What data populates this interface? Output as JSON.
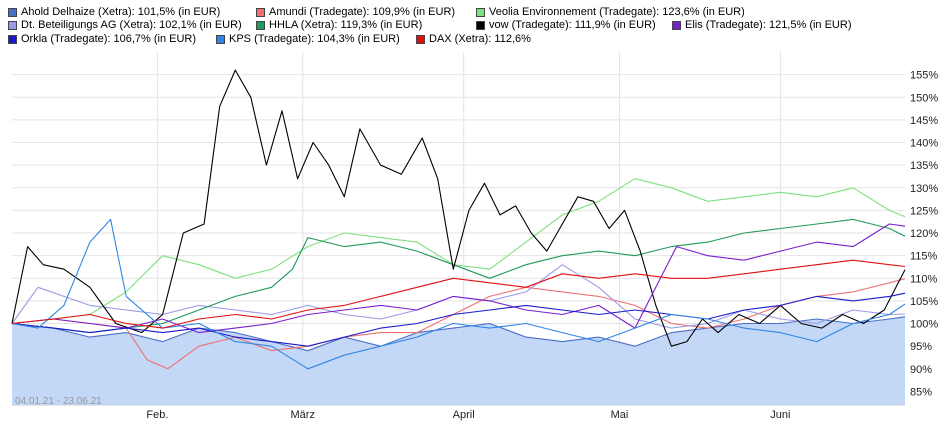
{
  "legend": [
    {
      "label": "Ahold Delhaize (Xetra): 101,5% (in EUR)",
      "color": "#4a6fc6"
    },
    {
      "label": "Amundi (Tradegate): 109,9% (in EUR)",
      "color": "#f07070"
    },
    {
      "label": "Veolia Environnement (Tradegate): 123,6% (in EUR)",
      "color": "#7fe07f"
    },
    {
      "label": "Dt. Beteiligungs AG (Xetra): 102,1% (in EUR)",
      "color": "#9a9ae8"
    },
    {
      "label": "HHLA (Xetra): 119,3% (in EUR)",
      "color": "#1e9a5a"
    },
    {
      "label": "vow (Tradegate): 111,9% (in EUR)",
      "color": "#000000"
    },
    {
      "label": "Elis (Tradegate): 121,5% (in EUR)",
      "color": "#7a1fd0"
    },
    {
      "label": "Orkla (Tradegate): 106,7% (in EUR)",
      "color": "#1a1acc"
    },
    {
      "label": "KPS (Tradegate): 104,3% (in EUR)",
      "color": "#2f86e6"
    },
    {
      "label": "DAX (Xetra): 112,6%",
      "color": "#e01010"
    }
  ],
  "date_range": "04.01.21 - 23.06.21",
  "chart_data": {
    "type": "line",
    "x_ticks": [
      "Feb.",
      "März",
      "April",
      "Mai",
      "Juni"
    ],
    "x_tick_days": [
      28,
      56,
      87,
      117,
      148
    ],
    "y_ticks": [
      "85%",
      "90%",
      "95%",
      "100%",
      "105%",
      "110%",
      "115%",
      "120%",
      "125%",
      "130%",
      "135%",
      "140%",
      "145%",
      "150%",
      "155%"
    ],
    "ylim": [
      82,
      160
    ],
    "xlim": [
      0,
      172
    ],
    "series": [
      {
        "name": "Ahold Delhaize (Xetra): 101,5% (in EUR)",
        "color": "#4a6fc6",
        "area": true,
        "x": [
          0,
          8,
          15,
          22,
          29,
          36,
          43,
          50,
          57,
          64,
          71,
          78,
          85,
          92,
          99,
          106,
          113,
          120,
          127,
          134,
          141,
          148,
          155,
          162,
          169,
          172
        ],
        "y": [
          100,
          99,
          97,
          98,
          96,
          99,
          98,
          96,
          94,
          97,
          95,
          98,
          99,
          100,
          97,
          96,
          97,
          95,
          98,
          99,
          100,
          100,
          101,
          100,
          101,
          101.5
        ]
      },
      {
        "name": "Amundi (Tradegate): 109,9% (in EUR)",
        "color": "#f07070",
        "x": [
          0,
          8,
          15,
          22,
          26,
          30,
          36,
          43,
          50,
          57,
          64,
          71,
          78,
          85,
          92,
          99,
          106,
          113,
          120,
          127,
          134,
          141,
          148,
          155,
          162,
          169,
          172
        ],
        "y": [
          100,
          101,
          100,
          99,
          92,
          90,
          95,
          97,
          94,
          95,
          97,
          98,
          98,
          102,
          106,
          108,
          107,
          106,
          104,
          100,
          99,
          101,
          104,
          106,
          107,
          109,
          109.9
        ]
      },
      {
        "name": "Veolia Environnement (Tradegate): 123,6% (in EUR)",
        "color": "#7fe07f",
        "x": [
          0,
          8,
          15,
          22,
          29,
          36,
          43,
          50,
          57,
          64,
          71,
          78,
          85,
          92,
          99,
          106,
          113,
          120,
          127,
          134,
          141,
          148,
          155,
          162,
          169,
          172
        ],
        "y": [
          100,
          101,
          102,
          107,
          115,
          113,
          110,
          112,
          117,
          120,
          119,
          118,
          113,
          112,
          118,
          124,
          127,
          132,
          130,
          127,
          128,
          129,
          128,
          130,
          125,
          123.6
        ]
      },
      {
        "name": "Dt. Beteiligungs AG (Xetra): 102,1% (in EUR)",
        "color": "#9a9ae8",
        "x": [
          0,
          5,
          10,
          15,
          22,
          29,
          36,
          43,
          50,
          57,
          64,
          71,
          78,
          85,
          92,
          99,
          106,
          113,
          120,
          127,
          134,
          141,
          148,
          155,
          162,
          169,
          172
        ],
        "y": [
          100,
          108,
          106,
          104,
          103,
          102,
          104,
          103,
          102,
          104,
          102,
          101,
          103,
          106,
          105,
          107,
          113,
          108,
          101,
          99,
          100,
          103,
          101,
          100,
          103,
          102,
          102.1
        ]
      },
      {
        "name": "HHLA (Xetra): 119,3% (in EUR)",
        "color": "#1e9a5a",
        "x": [
          0,
          8,
          15,
          22,
          29,
          36,
          43,
          50,
          54,
          57,
          64,
          71,
          78,
          85,
          92,
          99,
          106,
          113,
          120,
          127,
          134,
          141,
          148,
          155,
          162,
          169,
          172
        ],
        "y": [
          100,
          99,
          98,
          99,
          100,
          103,
          106,
          108,
          112,
          119,
          117,
          118,
          116,
          113,
          110,
          113,
          115,
          116,
          115,
          117,
          118,
          120,
          121,
          122,
          123,
          121,
          119.3
        ]
      },
      {
        "name": "vow (Tradegate): 111,9% (in EUR)",
        "color": "#000000",
        "x": [
          0,
          3,
          6,
          10,
          15,
          20,
          25,
          29,
          33,
          37,
          40,
          43,
          46,
          49,
          52,
          55,
          58,
          61,
          64,
          67,
          71,
          75,
          79,
          82,
          85,
          88,
          91,
          94,
          97,
          100,
          103,
          106,
          109,
          112,
          115,
          118,
          121,
          124,
          127,
          130,
          133,
          136,
          140,
          144,
          148,
          152,
          156,
          160,
          164,
          168,
          172
        ],
        "y": [
          100,
          117,
          113,
          112,
          108,
          100,
          98,
          102,
          120,
          122,
          148,
          156,
          150,
          135,
          147,
          132,
          140,
          135,
          128,
          143,
          135,
          133,
          141,
          132,
          112,
          125,
          131,
          124,
          126,
          120,
          116,
          122,
          128,
          127,
          121,
          125,
          116,
          104,
          95,
          96,
          101,
          98,
          102,
          100,
          104,
          100,
          99,
          102,
          100,
          103,
          111.9
        ]
      },
      {
        "name": "Elis (Tradegate): 121,5% (in EUR)",
        "color": "#7a1fd0",
        "x": [
          0,
          8,
          15,
          22,
          29,
          36,
          43,
          50,
          57,
          64,
          71,
          78,
          85,
          92,
          99,
          106,
          113,
          120,
          124,
          128,
          134,
          141,
          148,
          155,
          162,
          169,
          172
        ],
        "y": [
          100,
          101,
          100,
          99,
          101,
          98,
          99,
          100,
          102,
          103,
          104,
          103,
          106,
          105,
          103,
          102,
          104,
          99,
          108,
          117,
          115,
          114,
          116,
          118,
          117,
          122,
          121.5
        ]
      },
      {
        "name": "Orkla (Tradegate): 106,7% (in EUR)",
        "color": "#1a1acc",
        "x": [
          0,
          8,
          15,
          22,
          29,
          36,
          43,
          50,
          57,
          64,
          71,
          78,
          85,
          92,
          99,
          106,
          113,
          120,
          127,
          134,
          141,
          148,
          155,
          162,
          169,
          172
        ],
        "y": [
          100,
          99,
          98,
          99,
          98,
          99,
          97,
          96,
          95,
          97,
          99,
          100,
          102,
          103,
          104,
          103,
          102,
          103,
          102,
          101,
          103,
          104,
          106,
          105,
          106,
          106.7
        ]
      },
      {
        "name": "KPS (Tradegate): 104,3% (in EUR)",
        "color": "#2f86e6",
        "x": [
          0,
          5,
          10,
          15,
          19,
          22,
          29,
          36,
          43,
          50,
          57,
          64,
          71,
          78,
          85,
          92,
          99,
          106,
          113,
          120,
          127,
          134,
          141,
          148,
          155,
          162,
          169,
          172
        ],
        "y": [
          100,
          99,
          104,
          118,
          123,
          106,
          99,
          100,
          96,
          95,
          90,
          93,
          95,
          97,
          100,
          99,
          100,
          98,
          96,
          99,
          102,
          101,
          99,
          98,
          96,
          100,
          102,
          104.3
        ]
      },
      {
        "name": "DAX (Xetra): 112,6%",
        "color": "#e01010",
        "x": [
          0,
          8,
          15,
          22,
          29,
          36,
          43,
          50,
          57,
          64,
          71,
          78,
          85,
          92,
          99,
          106,
          113,
          120,
          127,
          134,
          141,
          148,
          155,
          162,
          169,
          172
        ],
        "y": [
          100,
          101,
          102,
          100,
          99,
          101,
          102,
          101,
          103,
          104,
          106,
          108,
          110,
          109,
          108,
          111,
          110,
          111,
          110,
          110,
          111,
          112,
          113,
          114,
          113,
          112.6
        ]
      }
    ]
  }
}
